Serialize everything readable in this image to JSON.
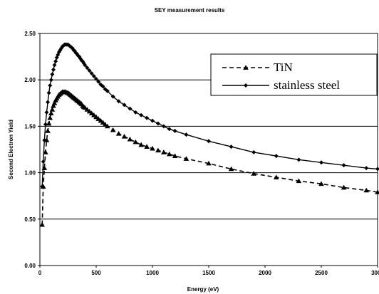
{
  "chart_data": {
    "type": "line",
    "title": "SEY measurement results",
    "xlabel": "Energy (eV)",
    "ylabel": "Second Electron Yield",
    "xlim": [
      0,
      3000
    ],
    "ylim": [
      0,
      2.5
    ],
    "xticks": [
      0,
      500,
      1000,
      1500,
      2000,
      2500,
      3000
    ],
    "yticks": [
      0.0,
      0.5,
      1.0,
      1.5,
      2.0,
      2.5
    ],
    "xtick_labels": [
      "0",
      "500",
      "1000",
      "1500",
      "2000",
      "2500",
      "3000"
    ],
    "ytick_labels": [
      "0.00",
      "0.50",
      "1.00",
      "1.50",
      "2.00",
      "2.50"
    ],
    "grid": "horizontal",
    "legend_position": "top-right",
    "series": [
      {
        "name": "stainless steel",
        "marker": "diamond",
        "line_style": "solid",
        "x": [
          20,
          30,
          40,
          50,
          60,
          70,
          80,
          90,
          100,
          110,
          120,
          130,
          140,
          150,
          160,
          170,
          180,
          190,
          200,
          210,
          220,
          230,
          240,
          250,
          260,
          270,
          280,
          290,
          300,
          310,
          320,
          330,
          340,
          350,
          360,
          370,
          380,
          390,
          400,
          420,
          440,
          460,
          480,
          500,
          520,
          540,
          560,
          580,
          600,
          650,
          700,
          750,
          800,
          850,
          900,
          950,
          1000,
          1050,
          1100,
          1150,
          1200,
          1300,
          1500,
          1700,
          1900,
          2100,
          2300,
          2500,
          2700,
          2900,
          3000
        ],
        "values": [
          0.85,
          1.12,
          1.35,
          1.52,
          1.65,
          1.76,
          1.86,
          1.94,
          2.0,
          2.06,
          2.11,
          2.16,
          2.2,
          2.24,
          2.27,
          2.3,
          2.32,
          2.34,
          2.36,
          2.37,
          2.38,
          2.38,
          2.38,
          2.38,
          2.37,
          2.36,
          2.35,
          2.34,
          2.32,
          2.31,
          2.29,
          2.28,
          2.26,
          2.25,
          2.23,
          2.21,
          2.2,
          2.18,
          2.16,
          2.13,
          2.1,
          2.07,
          2.04,
          2.01,
          1.98,
          1.95,
          1.93,
          1.9,
          1.88,
          1.82,
          1.77,
          1.73,
          1.69,
          1.65,
          1.62,
          1.59,
          1.56,
          1.53,
          1.5,
          1.47,
          1.45,
          1.41,
          1.34,
          1.28,
          1.22,
          1.18,
          1.14,
          1.11,
          1.08,
          1.05,
          1.04
        ]
      },
      {
        "name": "TiN",
        "marker": "triangle",
        "line_style": "dashed",
        "x": [
          20,
          30,
          40,
          50,
          60,
          70,
          80,
          90,
          100,
          110,
          120,
          130,
          140,
          150,
          160,
          170,
          180,
          190,
          200,
          210,
          220,
          230,
          240,
          250,
          260,
          270,
          280,
          290,
          300,
          310,
          320,
          330,
          340,
          350,
          360,
          370,
          380,
          390,
          400,
          420,
          440,
          460,
          480,
          500,
          520,
          540,
          560,
          580,
          600,
          650,
          700,
          750,
          800,
          850,
          900,
          950,
          1000,
          1050,
          1100,
          1150,
          1200,
          1300,
          1500,
          1700,
          1900,
          2100,
          2300,
          2500,
          2700,
          2900,
          3000
        ],
        "values": [
          0.44,
          0.85,
          1.05,
          1.22,
          1.35,
          1.45,
          1.53,
          1.59,
          1.64,
          1.68,
          1.72,
          1.75,
          1.78,
          1.8,
          1.82,
          1.84,
          1.85,
          1.86,
          1.87,
          1.87,
          1.87,
          1.87,
          1.86,
          1.86,
          1.85,
          1.84,
          1.83,
          1.82,
          1.81,
          1.8,
          1.79,
          1.78,
          1.77,
          1.76,
          1.75,
          1.74,
          1.72,
          1.71,
          1.7,
          1.68,
          1.66,
          1.64,
          1.62,
          1.6,
          1.58,
          1.56,
          1.54,
          1.52,
          1.5,
          1.46,
          1.42,
          1.39,
          1.36,
          1.33,
          1.3,
          1.28,
          1.26,
          1.24,
          1.22,
          1.2,
          1.18,
          1.15,
          1.1,
          1.04,
          0.99,
          0.95,
          0.91,
          0.88,
          0.84,
          0.81,
          0.79
        ]
      }
    ],
    "legend": [
      {
        "name": "TiN",
        "marker": "triangle",
        "line_style": "dashed"
      },
      {
        "name": "stainless steel",
        "marker": "diamond",
        "line_style": "solid"
      }
    ]
  }
}
